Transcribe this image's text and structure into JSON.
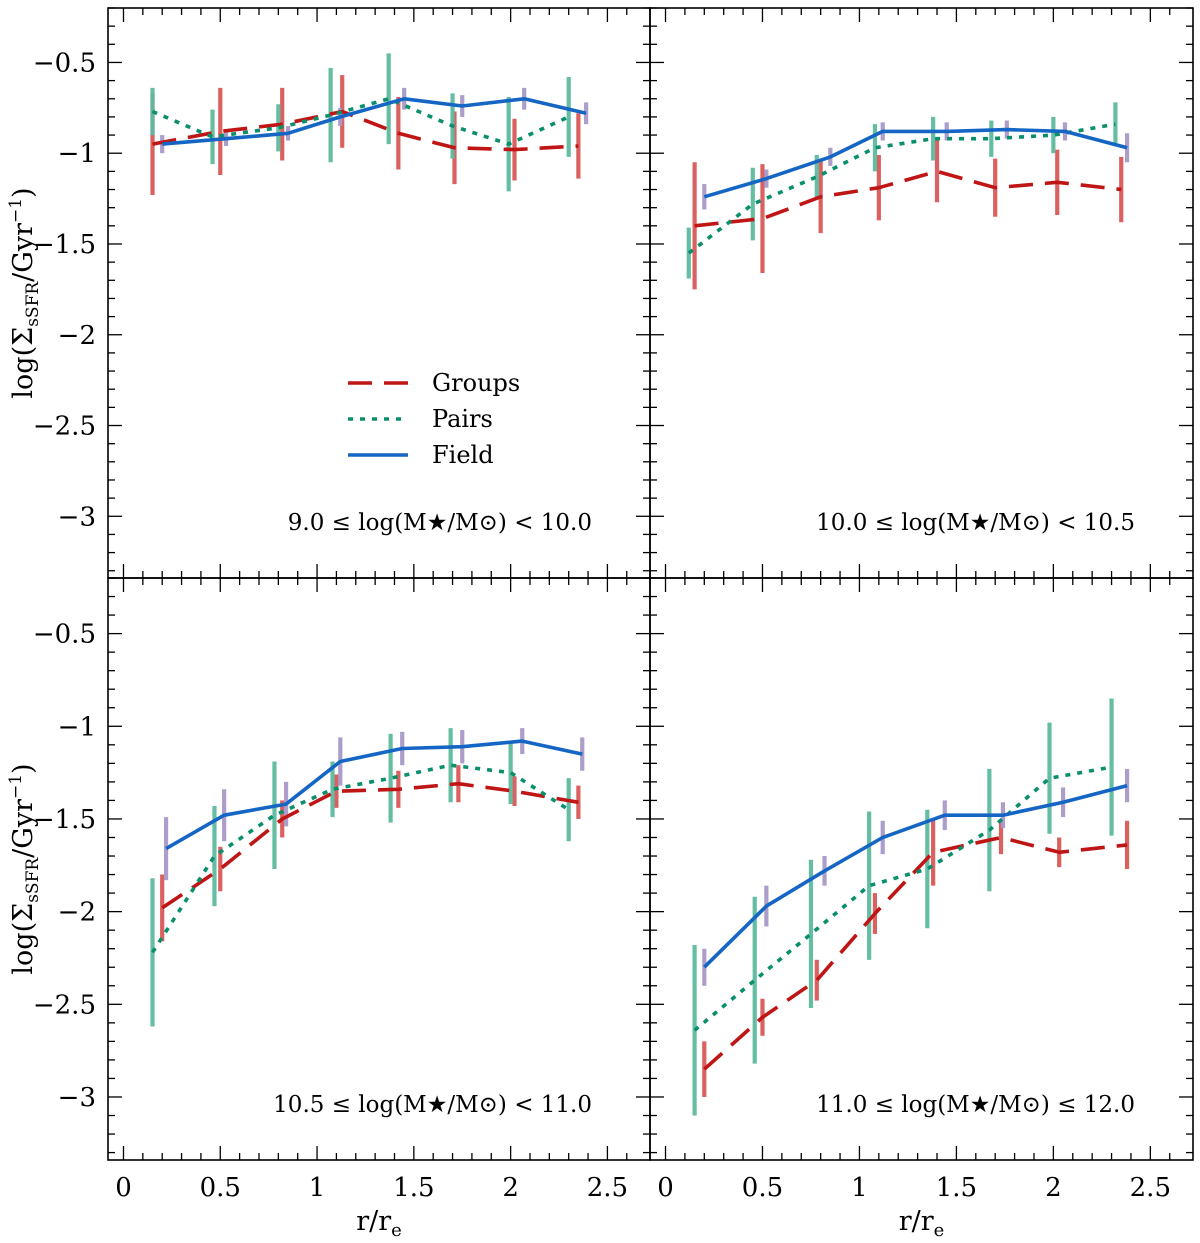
{
  "chart_data": {
    "type": "line",
    "layout": "2x2 grid",
    "xlabel_parts": [
      "r/r",
      "e"
    ],
    "ylabel_parts": [
      "log(Σ",
      "sSFR",
      "/Gyr",
      "−1",
      ")"
    ],
    "xlim": [
      -0.08,
      2.72
    ],
    "ylim": [
      -3.34,
      -0.2
    ],
    "x_ticks": [
      0,
      0.5,
      1,
      1.5,
      2,
      2.5
    ],
    "x_tick_labels": [
      "0",
      "0.5",
      "1",
      "1.5",
      "2",
      "2.5"
    ],
    "y_ticks": [
      -0.5,
      -1,
      -1.5,
      -2,
      -2.5,
      -3
    ],
    "y_tick_labels": [
      "−0.5",
      "−1",
      "−1.5",
      "−2",
      "−2.5",
      "−3"
    ],
    "legend": {
      "position": "center-right of top-left panel",
      "entries": [
        {
          "label": "Groups",
          "style": "dashed",
          "color": "#bf1515"
        },
        {
          "label": "Pairs",
          "style": "dotted",
          "color": "#0a8f6c"
        },
        {
          "label": "Field",
          "style": "solid",
          "color": "#1566c4"
        }
      ]
    },
    "panels": [
      {
        "label": "9.0  ≤  log(M★/M⊙) < 10.0",
        "series": [
          {
            "name": "Groups",
            "x": [
              0.15,
              0.5,
              0.82,
              1.13,
              1.42,
              1.71,
              2.02,
              2.35
            ],
            "y": [
              -0.95,
              -0.88,
              -0.84,
              -0.77,
              -0.89,
              -0.97,
              -0.98,
              -0.96
            ],
            "err": [
              0.28,
              0.24,
              0.2,
              0.2,
              0.2,
              0.2,
              0.17,
              0.18
            ]
          },
          {
            "name": "Pairs",
            "x": [
              0.15,
              0.46,
              0.8,
              1.07,
              1.37,
              1.7,
              1.99,
              2.3
            ],
            "y": [
              -0.77,
              -0.91,
              -0.86,
              -0.79,
              -0.7,
              -0.85,
              -0.95,
              -0.8
            ],
            "err": [
              0.13,
              0.15,
              0.13,
              0.26,
              0.25,
              0.18,
              0.26,
              0.22
            ]
          },
          {
            "name": "Field",
            "x": [
              0.2,
              0.53,
              0.85,
              1.12,
              1.45,
              1.75,
              2.07,
              2.39
            ],
            "y": [
              -0.95,
              -0.92,
              -0.89,
              -0.8,
              -0.7,
              -0.74,
              -0.7,
              -0.78
            ],
            "err": [
              0.05,
              0.04,
              0.04,
              0.05,
              0.06,
              0.06,
              0.06,
              0.06
            ]
          }
        ]
      },
      {
        "label": "10.0  ≤  log(M★/M⊙) < 10.5",
        "series": [
          {
            "name": "Groups",
            "x": [
              0.15,
              0.5,
              0.8,
              1.1,
              1.4,
              1.7,
              2.02,
              2.35
            ],
            "y": [
              -1.4,
              -1.36,
              -1.24,
              -1.19,
              -1.1,
              -1.19,
              -1.16,
              -1.2
            ],
            "err": [
              0.35,
              0.3,
              0.2,
              0.18,
              0.17,
              0.16,
              0.18,
              0.18
            ]
          },
          {
            "name": "Pairs",
            "x": [
              0.12,
              0.45,
              0.78,
              1.08,
              1.38,
              1.68,
              2.0,
              2.32
            ],
            "y": [
              -1.55,
              -1.28,
              -1.13,
              -0.97,
              -0.92,
              -0.92,
              -0.9,
              -0.84
            ],
            "err": [
              0.14,
              0.2,
              0.12,
              0.13,
              0.12,
              0.1,
              0.1,
              0.12
            ]
          },
          {
            "name": "Field",
            "x": [
              0.2,
              0.52,
              0.85,
              1.12,
              1.45,
              1.76,
              2.06,
              2.38
            ],
            "y": [
              -1.24,
              -1.14,
              -1.02,
              -0.88,
              -0.88,
              -0.87,
              -0.88,
              -0.97
            ],
            "err": [
              0.07,
              0.05,
              0.05,
              0.05,
              0.05,
              0.05,
              0.05,
              0.08
            ]
          }
        ]
      },
      {
        "label": "10.5  ≤  log(M★/M⊙) < 11.0",
        "series": [
          {
            "name": "Groups",
            "x": [
              0.2,
              0.5,
              0.82,
              1.1,
              1.42,
              1.73,
              2.02,
              2.35
            ],
            "y": [
              -1.98,
              -1.77,
              -1.5,
              -1.35,
              -1.34,
              -1.31,
              -1.35,
              -1.41
            ],
            "err": [
              0.18,
              0.12,
              0.1,
              0.09,
              0.1,
              0.1,
              0.08,
              0.09
            ]
          },
          {
            "name": "Pairs",
            "x": [
              0.15,
              0.47,
              0.78,
              1.08,
              1.38,
              1.69,
              2.0,
              2.3
            ],
            "y": [
              -2.22,
              -1.7,
              -1.48,
              -1.34,
              -1.28,
              -1.21,
              -1.25,
              -1.45
            ],
            "err": [
              0.4,
              0.27,
              0.29,
              0.15,
              0.24,
              0.2,
              0.17,
              0.17
            ]
          },
          {
            "name": "Field",
            "x": [
              0.22,
              0.52,
              0.84,
              1.12,
              1.44,
              1.75,
              2.06,
              2.37
            ],
            "y": [
              -1.66,
              -1.48,
              -1.42,
              -1.19,
              -1.12,
              -1.11,
              -1.08,
              -1.15
            ],
            "err": [
              0.17,
              0.14,
              0.12,
              0.13,
              0.09,
              0.09,
              0.07,
              0.09
            ]
          }
        ]
      },
      {
        "label": "11.0  ≤  log(M★/M⊙)  ≤  12.0",
        "series": [
          {
            "name": "Groups",
            "x": [
              0.2,
              0.5,
              0.78,
              1.08,
              1.38,
              1.73,
              2.03,
              2.38
            ],
            "y": [
              -2.85,
              -2.57,
              -2.37,
              -2.01,
              -1.68,
              -1.6,
              -1.68,
              -1.64
            ],
            "err": [
              0.15,
              0.1,
              0.11,
              0.11,
              0.18,
              0.09,
              0.08,
              0.13
            ]
          },
          {
            "name": "Pairs",
            "x": [
              0.15,
              0.46,
              0.75,
              1.05,
              1.35,
              1.67,
              1.98,
              2.3
            ],
            "y": [
              -2.64,
              -2.37,
              -2.12,
              -1.86,
              -1.77,
              -1.56,
              -1.28,
              -1.22
            ],
            "err": [
              0.46,
              0.45,
              0.4,
              0.4,
              0.32,
              0.33,
              0.3,
              0.37
            ]
          },
          {
            "name": "Field",
            "x": [
              0.2,
              0.52,
              0.82,
              1.12,
              1.44,
              1.74,
              2.05,
              2.38
            ],
            "y": [
              -2.3,
              -1.97,
              -1.78,
              -1.6,
              -1.48,
              -1.48,
              -1.41,
              -1.32
            ],
            "err": [
              0.1,
              0.11,
              0.08,
              0.09,
              0.08,
              0.07,
              0.08,
              0.09
            ]
          }
        ]
      }
    ]
  },
  "colors": {
    "Groups": "#bf1515",
    "Groups_err": "#d95757",
    "Pairs": "#0a8f6c",
    "Pairs_err": "#5dbb9f",
    "Field": "#1566c4",
    "Field_err": "#a898c8"
  }
}
